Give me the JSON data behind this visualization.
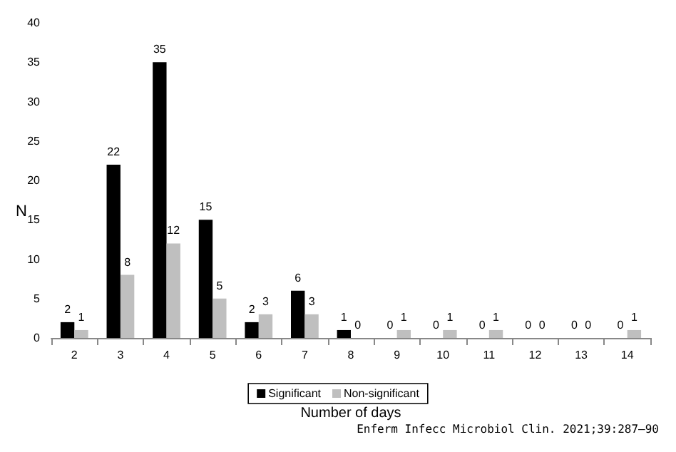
{
  "chart_data": {
    "type": "bar",
    "xlabel": "Number of days",
    "ylabel": "N",
    "categories": [
      "2",
      "3",
      "4",
      "5",
      "6",
      "7",
      "8",
      "9",
      "10",
      "11",
      "12",
      "13",
      "14"
    ],
    "series": [
      {
        "name": "Significant",
        "color": "#000000",
        "values": [
          2,
          22,
          35,
          15,
          2,
          6,
          1,
          0,
          0,
          0,
          0,
          0,
          0
        ]
      },
      {
        "name": "Non-significant",
        "color": "#bfbfbf",
        "values": [
          1,
          8,
          12,
          5,
          3,
          3,
          0,
          1,
          1,
          1,
          0,
          0,
          1
        ]
      }
    ],
    "ylim": [
      0,
      40
    ],
    "yticks": [
      0,
      5,
      10,
      15,
      20,
      25,
      30,
      35,
      40
    ],
    "grid": false,
    "legend": "bottom",
    "data_labels": true,
    "annotations": [
      "Enferm Infecc Microbiol Clin. 2021;39:287–90"
    ]
  }
}
